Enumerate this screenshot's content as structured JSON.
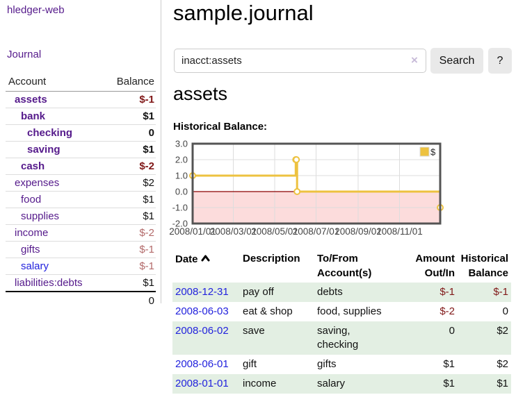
{
  "app": {
    "title": "hledger-web"
  },
  "colors": {
    "link_purple": "#551a8b",
    "link_blue": "#2222dd",
    "negative": "#801818",
    "negative_soft": "#b36a6a",
    "row_stripe_green": "#e3efe3",
    "button_gray": "#e9e9e9"
  },
  "sidebar": {
    "journal_label": "Journal",
    "table": {
      "account_header": "Account",
      "balance_header": "Balance",
      "rows": [
        {
          "name": "assets",
          "balance": "$-1",
          "level": 1,
          "bold": true,
          "tone": "neg"
        },
        {
          "name": "bank",
          "balance": "$1",
          "level": 2,
          "bold": true,
          "tone": ""
        },
        {
          "name": "checking",
          "balance": "0",
          "level": 3,
          "bold": true,
          "tone": ""
        },
        {
          "name": "saving",
          "balance": "$1",
          "level": 3,
          "bold": true,
          "tone": ""
        },
        {
          "name": "cash",
          "balance": "$-2",
          "level": 2,
          "bold": true,
          "tone": "neg"
        },
        {
          "name": "expenses",
          "balance": "$2",
          "level": 1,
          "bold": false,
          "tone": ""
        },
        {
          "name": "food",
          "balance": "$1",
          "level": 2,
          "bold": false,
          "tone": ""
        },
        {
          "name": "supplies",
          "balance": "$1",
          "level": 2,
          "bold": false,
          "tone": ""
        },
        {
          "name": "income",
          "balance": "$-2",
          "level": 1,
          "bold": false,
          "tone": "negsoft"
        },
        {
          "name": "gifts",
          "balance": "$-1",
          "level": 2,
          "bold": false,
          "tone": "negsoft"
        },
        {
          "name": "salary",
          "balance": "$-1",
          "level": 2,
          "bold": false,
          "tone": "negsoft",
          "blue": true
        },
        {
          "name": "liabilities:debts",
          "balance": "$1",
          "level": 1,
          "bold": false,
          "tone": ""
        }
      ],
      "total": "0"
    }
  },
  "main": {
    "title": "sample.journal",
    "search": {
      "value": "inacct:assets",
      "clear_icon": "×",
      "search_label": "Search",
      "help_label": "?"
    },
    "account_heading": "assets",
    "chart_heading": "Historical Balance:"
  },
  "chart_data": {
    "type": "line",
    "title": "Historical Balance:",
    "step": true,
    "xlim": [
      "2008-01-01",
      "2008-12-31"
    ],
    "ylim": [
      -2,
      3
    ],
    "x_ticks": [
      "2008/01/01",
      "2008/03/01",
      "2008/05/01",
      "2008/07/01",
      "2008/09/01",
      "2008/11/01"
    ],
    "y_ticks": [
      3,
      2,
      1,
      0,
      -1,
      -2
    ],
    "grid": true,
    "negative_region_shaded": true,
    "legend": {
      "position": "top-right"
    },
    "series": [
      {
        "name": "$",
        "color": "#edc240",
        "points": [
          [
            "2008-01-01",
            1
          ],
          [
            "2008-06-01",
            2
          ],
          [
            "2008-06-02",
            2
          ],
          [
            "2008-06-03",
            0
          ],
          [
            "2008-12-31",
            -1
          ]
        ]
      }
    ],
    "colors": {
      "negative_fill": "#fcdcdc",
      "zero_line": "#8b0000",
      "border": "#545454",
      "grid": "#dddddd",
      "tick_text": "#444444"
    }
  },
  "transactions": {
    "headers": {
      "date": "Date",
      "description": "Description",
      "account": "To/From Account(s)",
      "amount": "Amount Out/In",
      "balance": "Historical Balance"
    },
    "sort_icon": "chevron-up",
    "rows": [
      {
        "date": "2008-12-31",
        "description": "pay off",
        "accounts": [
          "debts"
        ],
        "amount": "$-1",
        "amount_neg": true,
        "balance": "$-1",
        "balance_neg": true
      },
      {
        "date": "2008-06-03",
        "description": "eat & shop",
        "accounts": [
          "food, supplies"
        ],
        "amount": "$-2",
        "amount_neg": true,
        "balance": "0",
        "balance_neg": false
      },
      {
        "date": "2008-06-02",
        "description": "save",
        "accounts": [
          "saving,",
          "checking"
        ],
        "amount": "0",
        "amount_neg": false,
        "balance": "$2",
        "balance_neg": false
      },
      {
        "date": "2008-06-01",
        "description": "gift",
        "accounts": [
          "gifts"
        ],
        "amount": "$1",
        "amount_neg": false,
        "balance": "$2",
        "balance_neg": false
      },
      {
        "date": "2008-01-01",
        "description": "income",
        "accounts": [
          "salary"
        ],
        "amount": "$1",
        "amount_neg": false,
        "balance": "$1",
        "balance_neg": false
      }
    ]
  }
}
